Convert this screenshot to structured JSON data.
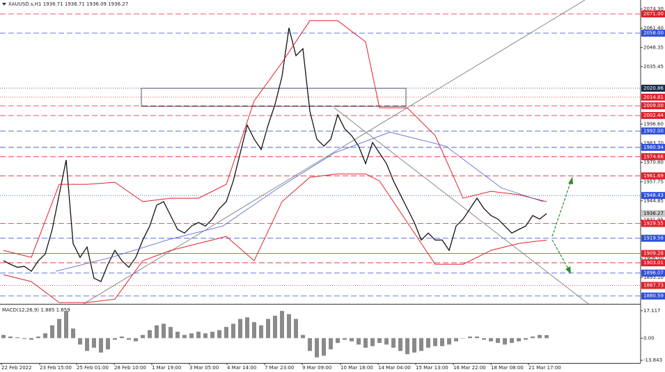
{
  "chart_data": [
    {
      "type": "line",
      "title": "XAUUSD.s,H1  1936.71 1936.71 1936.09 1936.27",
      "xlim": [
        -0.5,
        91.5
      ],
      "xticks": [
        {
          "value": -0.3,
          "label": "22 Feb 2022"
        },
        {
          "value": 5.2,
          "label": "23 Feb 15:00"
        },
        {
          "value": 10.5,
          "label": "25 Feb 01:00"
        },
        {
          "value": 15.9,
          "label": "28 Feb 10:00"
        },
        {
          "value": 21.3,
          "label": "1 Mar 19:00"
        },
        {
          "value": 26.7,
          "label": "3 Mar 05:00"
        },
        {
          "value": 32.1,
          "label": "4 Mar 14:00"
        },
        {
          "value": 37.5,
          "label": "7 Mar 23:00"
        },
        {
          "value": 42.9,
          "label": "9 Mar 09:00"
        },
        {
          "value": 48.4,
          "label": "10 Mar 18:00"
        },
        {
          "value": 53.8,
          "label": "14 Mar 04:00"
        },
        {
          "value": 59.2,
          "label": "15 Mar 13:00"
        },
        {
          "value": 64.6,
          "label": "16 Mar 22:00"
        },
        {
          "value": 70,
          "label": "18 Mar 08:00"
        },
        {
          "value": 75.4,
          "label": "21 Mar 17:00"
        }
      ],
      "ylim": [
        1875.3,
        2080.4
      ],
      "yticks": [
        {
          "value": 2074.3,
          "label": "2074.30"
        },
        {
          "value": 2061.4,
          "label": "2061.40"
        },
        2048.35,
        2035.45,
        {
          "value": 1996.6,
          "label": "1996.60"
        },
        {
          "value": 1983.7,
          "label": "1983.70"
        },
        {
          "value": 1970.8,
          "label": "1970.80"
        },
        1957.75,
        1944.85,
        1931.95,
        {
          "value": 1906,
          "label": "1906.00"
        },
        {
          "value": 1893.1,
          "label": "1893.10"
        }
      ],
      "levels": [
        {
          "value": 2071,
          "label": "2071.00",
          "color": "#e0202a",
          "style": "dashed"
        },
        {
          "value": 2058,
          "label": "2058.00",
          "color": "#2f4fd8",
          "style": "dashed"
        },
        {
          "value": 2020.86,
          "label": "2020.86",
          "color": "#1c2a48",
          "style": "dotted"
        },
        {
          "value": 2014.81,
          "label": "2014.81",
          "color": "#e0202a",
          "style": "dotted"
        },
        {
          "value": 2009,
          "label": "2009.00",
          "color": "#e0202a",
          "style": "dashed"
        },
        {
          "value": 2002.44,
          "label": "2002.44",
          "color": "#e0202a",
          "style": "dashed"
        },
        {
          "value": 1992,
          "label": "1992.00",
          "color": "#2f4fd8",
          "style": "dashed"
        },
        {
          "value": 1980.94,
          "label": "1980.94",
          "color": "#2f4fd8",
          "style": "dashed"
        },
        {
          "value": 1974.66,
          "label": "1974.66",
          "color": "#e0202a",
          "style": "dashed"
        },
        {
          "value": 1961.69,
          "label": "1961.69",
          "color": "#e0202a",
          "style": "dashed"
        },
        {
          "value": 1948.43,
          "label": "1948.43",
          "color": "#2f4fd8",
          "style": "dotted"
        },
        {
          "value": 1936.27,
          "label": "1936.27",
          "color": "#c8c8c8",
          "style": "none"
        },
        {
          "value": 1929.55,
          "label": "1929.55",
          "color": "#e0202a",
          "style": "dashed"
        },
        {
          "value": 1919.58,
          "label": "1919.58",
          "color": "#2f4fd8",
          "style": "dashed"
        },
        {
          "value": 1909.28,
          "label": "1909.28",
          "color": "#e0202a",
          "style": "solid"
        },
        {
          "value": 1903.01,
          "label": "1903.01",
          "color": "#e0202a",
          "style": "dashed"
        },
        {
          "value": 1896.07,
          "label": "1896.07",
          "color": "#2f4fd8",
          "style": "dashed"
        },
        {
          "value": 1887.73,
          "label": "1887.73",
          "color": "#e0202a",
          "style": "dotted"
        },
        {
          "value": 1880.59,
          "label": "1880.59",
          "color": "#2f4fd8",
          "style": "dashed"
        }
      ],
      "series": [
        {
          "color": "#111111",
          "width": 1.3,
          "x": [
            0,
            1,
            2,
            3,
            4,
            5,
            6,
            7,
            8,
            9,
            10,
            11,
            12,
            13,
            14,
            15,
            16,
            17,
            18,
            19,
            20,
            21,
            22,
            23,
            24,
            25,
            26,
            27,
            28,
            29,
            30,
            31,
            32,
            33,
            34,
            35,
            36,
            37,
            38,
            39,
            40,
            41,
            42,
            43,
            44,
            45,
            46,
            47,
            48,
            49,
            50,
            51,
            52,
            53,
            54,
            55,
            56,
            57,
            58,
            59,
            60,
            61,
            62,
            63,
            64,
            65,
            66,
            67,
            68,
            69,
            70,
            71,
            72,
            73,
            74,
            75,
            76,
            77,
            78
          ],
          "values": [
            1904.4,
            1902,
            1900,
            1900.6,
            1897.3,
            1904.4,
            1909,
            1925.5,
            1949,
            1972.4,
            1916,
            1906.7,
            1913.7,
            1892.6,
            1890.3,
            1902,
            1911.4,
            1904.4,
            1900,
            1906.7,
            1918.4,
            1927.8,
            1941.9,
            1944.3,
            1934.9,
            1925.5,
            1923.1,
            1927.8,
            1930.2,
            1927.8,
            1932.5,
            1939.6,
            1944.3,
            1958.3,
            1977.1,
            1995.9,
            1986.5,
            1979.5,
            1995.9,
            2010,
            2028.8,
            2061.6,
            2042.8,
            2047.5,
            2005.3,
            1986.5,
            1981.8,
            1986.5,
            2002.9,
            1993.5,
            1988.9,
            1981.8,
            1970,
            1984.2,
            1977.1,
            1970,
            1958.3,
            1948.9,
            1939.6,
            1930.2,
            1918.4,
            1923.1,
            1918.4,
            1918.4,
            1911.4,
            1927.8,
            1932.5,
            1939.6,
            1946.6,
            1939.6,
            1934.9,
            1932.5,
            1927.8,
            1923.1,
            1925.5,
            1927.8,
            1934.9,
            1932.5,
            1936.27
          ]
        },
        {
          "color": "#e0202a",
          "width": 1,
          "x": [
            0,
            4,
            8,
            12,
            16,
            20,
            24,
            28,
            32,
            36,
            40,
            44,
            48,
            52,
            54,
            58,
            62,
            66,
            70,
            74,
            78
          ],
          "values": [
            1911.4,
            1906.7,
            1956,
            1956,
            1957.4,
            1944.3,
            1946.6,
            1946.6,
            1956,
            2012.3,
            2038.2,
            2066.4,
            2066.4,
            2052.2,
            2007.6,
            2007.6,
            1988.9,
            1946.6,
            1951.3,
            1949,
            1944.3
          ]
        },
        {
          "color": "#e0202a",
          "width": 1,
          "x": [
            0,
            4,
            8,
            12,
            16,
            20,
            24,
            28,
            32,
            36,
            40,
            44,
            48,
            52,
            54,
            58,
            62,
            66,
            70,
            74,
            78
          ],
          "values": [
            1895,
            1890.3,
            1876.2,
            1876.2,
            1878.5,
            1904.4,
            1911.4,
            1916.1,
            1920.8,
            1904.4,
            1944.3,
            1960.7,
            1963,
            1963,
            1958.3,
            1930.2,
            1902,
            1902,
            1911.4,
            1916.1,
            1918.4
          ]
        },
        {
          "color": "#4a5bd0",
          "width": 0.8,
          "x": [
            7.5,
            15.5,
            23.5,
            31.5,
            39.5,
            47.5,
            55.5,
            63.5,
            71.5,
            77.5
          ],
          "values": [
            1897.3,
            1906.7,
            1918.4,
            1927.8,
            1953.6,
            1977.1,
            1991.2,
            1981.8,
            1953.6,
            1944.3
          ]
        }
      ]
    },
    {
      "type": "bar",
      "title": "MACD(12,26,9) 1.885 1.659",
      "color": "#8a8a8a",
      "xlim": [
        -0.5,
        91.5
      ],
      "ylim": [
        -15.5,
        20.1
      ],
      "yticks": [
        17.117,
        {
          "value": 0,
          "label": "0.00"
        },
        -13.843
      ],
      "x": [
        0,
        1,
        2,
        3,
        4,
        5,
        6,
        7,
        8,
        9,
        10,
        11,
        12,
        13,
        14,
        15,
        16,
        17,
        18,
        19,
        20,
        21,
        22,
        23,
        24,
        25,
        26,
        27,
        28,
        29,
        30,
        31,
        32,
        33,
        34,
        35,
        36,
        37,
        38,
        39,
        40,
        41,
        42,
        43,
        44,
        45,
        46,
        47,
        48,
        49,
        50,
        51,
        52,
        53,
        54,
        55,
        56,
        57,
        58,
        59,
        60,
        61,
        62,
        63,
        64,
        65,
        66,
        67,
        68,
        69,
        70,
        71,
        72,
        73,
        74,
        75,
        76,
        77,
        78
      ],
      "values": [
        2,
        1,
        0.5,
        -0.5,
        -1,
        1,
        3,
        8,
        12,
        17,
        6,
        -4,
        -8,
        -6,
        -9,
        -7,
        -1,
        1,
        -1,
        -2,
        2,
        5,
        8,
        9,
        7,
        4,
        2,
        3,
        4,
        3,
        4,
        5,
        7,
        9,
        12,
        13,
        10,
        8,
        12,
        14,
        17,
        15,
        12,
        2,
        -8,
        -12,
        -11,
        -7,
        -3,
        -1,
        -2,
        -4,
        -6,
        -5,
        -3,
        -4,
        -6,
        -8,
        -10,
        -9,
        -8,
        -6,
        -5,
        -5,
        -4,
        -2,
        0,
        1,
        1,
        -1,
        -2,
        -3,
        -4,
        -3,
        -2,
        -1,
        1,
        2,
        1.885
      ]
    }
  ]
}
